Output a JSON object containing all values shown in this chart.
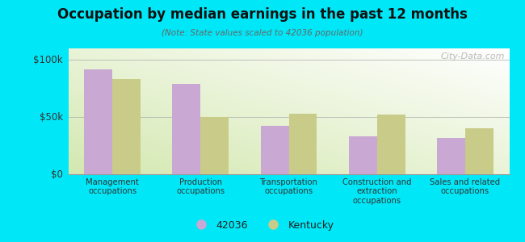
{
  "title": "Occupation by median earnings in the past 12 months",
  "subtitle": "(Note: State values scaled to 42036 population)",
  "categories": [
    "Management\noccupations",
    "Production\noccupations",
    "Transportation\noccupations",
    "Construction and\nextraction\noccupations",
    "Sales and related\noccupations"
  ],
  "values_42036": [
    92000,
    79000,
    42000,
    33000,
    32000
  ],
  "values_kentucky": [
    83000,
    50000,
    53000,
    52000,
    40000
  ],
  "color_42036": "#c9a8d4",
  "color_kentucky": "#c8cc88",
  "background_outer": "#00e8f8",
  "ylim": [
    0,
    110000
  ],
  "yticks": [
    0,
    50000,
    100000
  ],
  "ytick_labels": [
    "$0",
    "$50k",
    "$100k"
  ],
  "legend_label_42036": "42036",
  "legend_label_kentucky": "Kentucky",
  "watermark": "City-Data.com"
}
